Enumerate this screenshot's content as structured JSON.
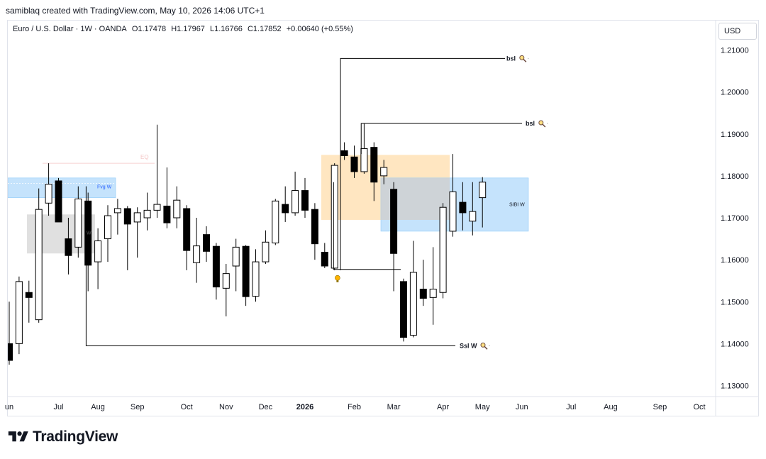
{
  "header": {
    "caption": "samiblaq created with TradingView.com, May 10, 2026 14:06 UTC+1"
  },
  "legend": {
    "symbol": "Euro / U.S. Dollar · 1W · OANDA",
    "open": "O1.17478",
    "high": "H1.17967",
    "low": "L1.16766",
    "close": "C1.17852",
    "change": "+0.00640 (+0.55%)"
  },
  "currency": "USD",
  "brand": {
    "name": "TradingView"
  },
  "colors": {
    "bull": "#ffffff",
    "bear": "#000000",
    "fvg": "#bbdefb",
    "sibi": "#bbdefb",
    "orderblock": "#ffe0b2",
    "breaker": "#d6d6d6"
  },
  "chart_data": {
    "type": "candlestick",
    "yticks": [
      "1.21000",
      "1.20000",
      "1.19000",
      "1.18000",
      "1.17000",
      "1.16000",
      "1.15000",
      "1.14000",
      "1.13000"
    ],
    "ylim": [
      1.127,
      1.2215
    ],
    "xticks": [
      {
        "label": "un",
        "i": 0
      },
      {
        "label": "Jul",
        "i": 5
      },
      {
        "label": "Aug",
        "i": 9
      },
      {
        "label": "Sep",
        "i": 13
      },
      {
        "label": "Oct",
        "i": 18
      },
      {
        "label": "Nov",
        "i": 22
      },
      {
        "label": "Dec",
        "i": 26
      },
      {
        "label": "2026",
        "i": 30
      },
      {
        "label": "Feb",
        "i": 35
      },
      {
        "label": "Mar",
        "i": 39
      },
      {
        "label": "Apr",
        "i": 44
      },
      {
        "label": "May",
        "i": 48
      },
      {
        "label": "Jun",
        "i": 52
      },
      {
        "label": "Jul",
        "i": 57
      },
      {
        "label": "Aug",
        "i": 61
      },
      {
        "label": "Sep",
        "i": 66
      },
      {
        "label": "Oct",
        "i": 70
      }
    ],
    "candles": [
      {
        "o": 1.14,
        "h": 1.15,
        "l": 1.135,
        "c": 1.136
      },
      {
        "o": 1.14,
        "h": 1.156,
        "l": 1.1375,
        "c": 1.1548
      },
      {
        "o": 1.1522,
        "h": 1.155,
        "l": 1.145,
        "c": 1.151
      },
      {
        "o": 1.1457,
        "h": 1.177,
        "l": 1.145,
        "c": 1.172
      },
      {
        "o": 1.1735,
        "h": 1.183,
        "l": 1.1705,
        "c": 1.178
      },
      {
        "o": 1.1788,
        "h": 1.1795,
        "l": 1.1695,
        "c": 1.169
      },
      {
        "o": 1.165,
        "h": 1.17,
        "l": 1.1565,
        "c": 1.161
      },
      {
        "o": 1.163,
        "h": 1.1775,
        "l": 1.1605,
        "c": 1.1745
      },
      {
        "o": 1.174,
        "h": 1.176,
        "l": 1.1525,
        "c": 1.1587
      },
      {
        "o": 1.1595,
        "h": 1.1675,
        "l": 1.153,
        "c": 1.1645
      },
      {
        "o": 1.165,
        "h": 1.173,
        "l": 1.1595,
        "c": 1.1705
      },
      {
        "o": 1.1712,
        "h": 1.1745,
        "l": 1.166,
        "c": 1.1722
      },
      {
        "o": 1.1722,
        "h": 1.1728,
        "l": 1.1575,
        "c": 1.1685
      },
      {
        "o": 1.169,
        "h": 1.1725,
        "l": 1.1605,
        "c": 1.1712
      },
      {
        "o": 1.17,
        "h": 1.176,
        "l": 1.167,
        "c": 1.1718
      },
      {
        "o": 1.1718,
        "h": 1.1922,
        "l": 1.17,
        "c": 1.1732
      },
      {
        "o": 1.1728,
        "h": 1.182,
        "l": 1.1675,
        "c": 1.1688
      },
      {
        "o": 1.17,
        "h": 1.1775,
        "l": 1.1675,
        "c": 1.1742
      },
      {
        "o": 1.1722,
        "h": 1.173,
        "l": 1.1575,
        "c": 1.1622
      },
      {
        "o": 1.1593,
        "h": 1.17,
        "l": 1.1545,
        "c": 1.1633
      },
      {
        "o": 1.166,
        "h": 1.168,
        "l": 1.1595,
        "c": 1.162
      },
      {
        "o": 1.1632,
        "h": 1.164,
        "l": 1.1505,
        "c": 1.1535
      },
      {
        "o": 1.1532,
        "h": 1.159,
        "l": 1.1465,
        "c": 1.1567
      },
      {
        "o": 1.1585,
        "h": 1.165,
        "l": 1.1525,
        "c": 1.163
      },
      {
        "o": 1.1632,
        "h": 1.1635,
        "l": 1.149,
        "c": 1.1512
      },
      {
        "o": 1.1513,
        "h": 1.1625,
        "l": 1.15,
        "c": 1.1595
      },
      {
        "o": 1.1595,
        "h": 1.167,
        "l": 1.159,
        "c": 1.1642
      },
      {
        "o": 1.164,
        "h": 1.1745,
        "l": 1.1635,
        "c": 1.174
      },
      {
        "o": 1.1732,
        "h": 1.1775,
        "l": 1.169,
        "c": 1.1712
      },
      {
        "o": 1.1712,
        "h": 1.181,
        "l": 1.1705,
        "c": 1.1765
      },
      {
        "o": 1.1765,
        "h": 1.1795,
        "l": 1.17,
        "c": 1.1718
      },
      {
        "o": 1.172,
        "h": 1.1735,
        "l": 1.16,
        "c": 1.1638
      },
      {
        "o": 1.1618,
        "h": 1.164,
        "l": 1.158,
        "c": 1.1585
      },
      {
        "o": 1.158,
        "h": 1.183,
        "l": 1.1575,
        "c": 1.1825
      },
      {
        "o": 1.186,
        "h": 1.188,
        "l": 1.1838,
        "c": 1.1848
      },
      {
        "o": 1.1845,
        "h": 1.1872,
        "l": 1.1795,
        "c": 1.181
      },
      {
        "o": 1.181,
        "h": 1.1925,
        "l": 1.1805,
        "c": 1.1865
      },
      {
        "o": 1.1868,
        "h": 1.188,
        "l": 1.174,
        "c": 1.1785
      },
      {
        "o": 1.18,
        "h": 1.1838,
        "l": 1.178,
        "c": 1.182
      },
      {
        "o": 1.1768,
        "h": 1.1785,
        "l": 1.1525,
        "c": 1.1615
      },
      {
        "o": 1.1548,
        "h": 1.1555,
        "l": 1.1405,
        "c": 1.1415
      },
      {
        "o": 1.142,
        "h": 1.1645,
        "l": 1.1415,
        "c": 1.157
      },
      {
        "o": 1.153,
        "h": 1.16,
        "l": 1.149,
        "c": 1.1508
      },
      {
        "o": 1.151,
        "h": 1.163,
        "l": 1.1445,
        "c": 1.153
      },
      {
        "o": 1.1522,
        "h": 1.1735,
        "l": 1.1508,
        "c": 1.1725
      },
      {
        "o": 1.1668,
        "h": 1.1852,
        "l": 1.1655,
        "c": 1.1762
      },
      {
        "o": 1.1737,
        "h": 1.1785,
        "l": 1.167,
        "c": 1.1712
      },
      {
        "o": 1.1692,
        "h": 1.1785,
        "l": 1.1658,
        "c": 1.1715
      },
      {
        "o": 1.1748,
        "h": 1.1797,
        "l": 1.1677,
        "c": 1.1785
      }
    ],
    "annotations": [
      {
        "label": "bsl",
        "price": 1.208
      },
      {
        "label": "bsl",
        "price": 1.1925
      },
      {
        "label": "Ssl W",
        "price": 1.1395
      },
      {
        "label": "Fvg W",
        "top": 1.1795,
        "bottom": 1.1748
      },
      {
        "label": "SIBI W",
        "top": 1.1795,
        "bottom": 1.1668
      },
      {
        "label": "W",
        "top": 1.1708,
        "bottom": 1.1615
      }
    ]
  }
}
